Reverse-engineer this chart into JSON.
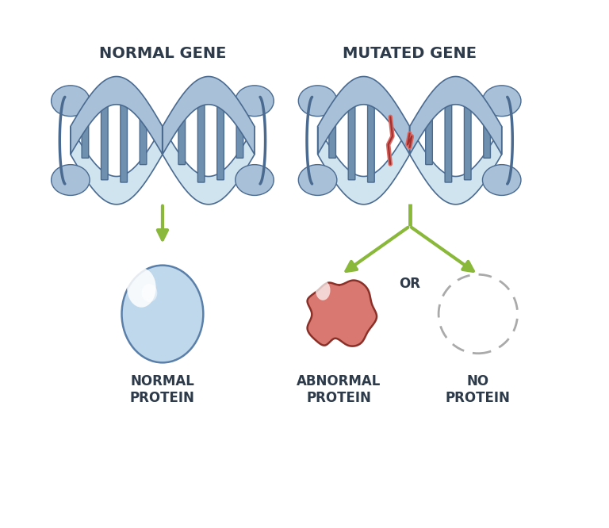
{
  "bg_color": "#ffffff",
  "title_left": "NORMAL GENE",
  "title_right": "MUTATED GENE",
  "title_fontsize": 14,
  "title_color": "#2d3a4a",
  "label_normal": "NORMAL\nPROTEIN",
  "label_abnormal": "ABNORMAL\nPROTEIN",
  "label_no": "NO\nPROTEIN",
  "label_or": "OR",
  "dna_fill": "#a8c0d8",
  "dna_edge": "#4a6a90",
  "dna_light": "#d0e4f0",
  "dna_rung_fill": "#7090b0",
  "dna_rung_edge": "#4a6a90",
  "mutation_fill": "#d96860",
  "mutation_edge": "#a03030",
  "arrow_color": "#8ab83a",
  "arrow_edge": "#5a8020",
  "protein_normal_fill": "#c0d8ec",
  "protein_normal_edge": "#5a7fa8",
  "protein_abnormal_fill1": "#d97870",
  "protein_abnormal_fill2": "#e8a898",
  "protein_abnormal_edge": "#8a3028",
  "figsize": [
    7.68,
    6.66
  ],
  "dpi": 100
}
